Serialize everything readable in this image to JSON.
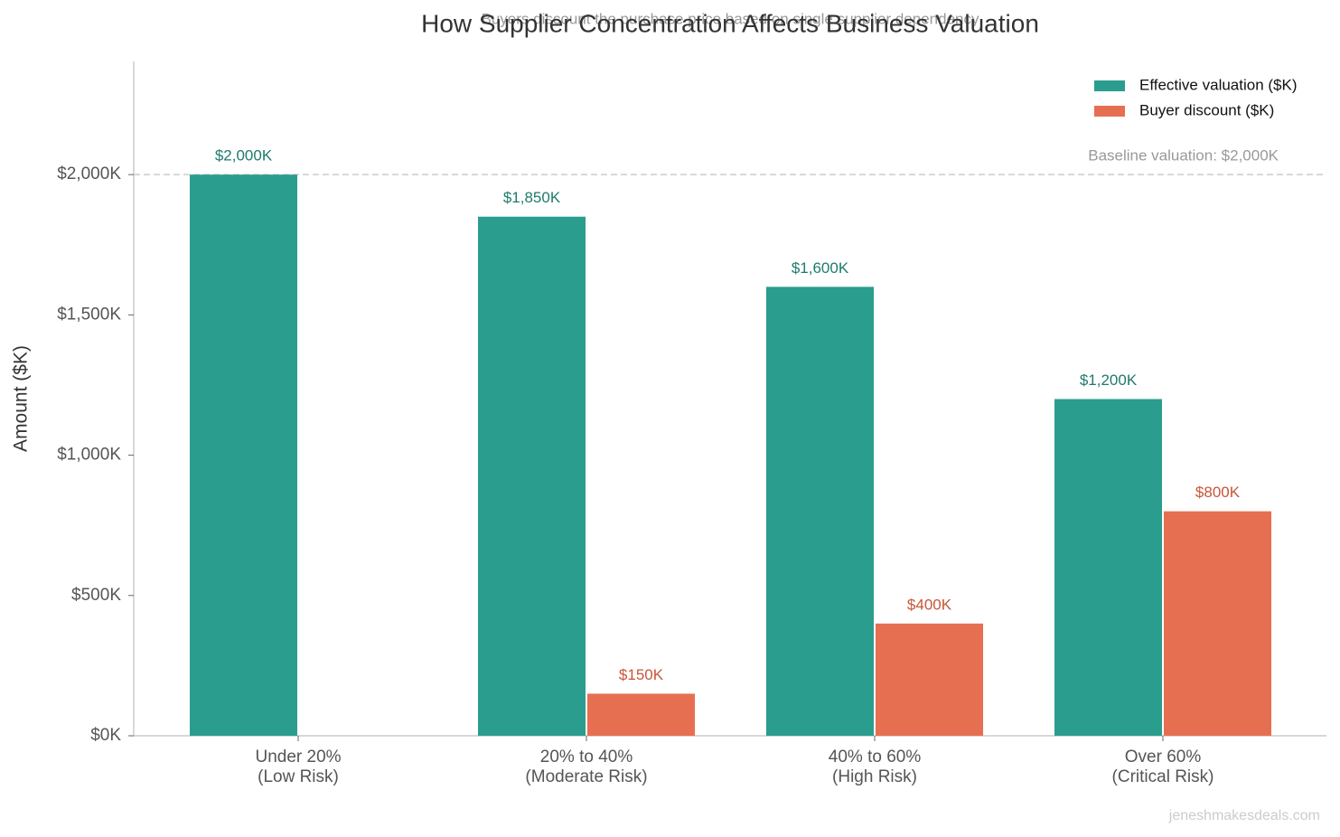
{
  "chart_data": {
    "type": "bar",
    "title": "How Supplier Concentration Affects Business Valuation",
    "subtitle": "Buyers discount the purchase price based on single supplier dependency",
    "y_label": "Amount ($K)",
    "categories": [
      "Under 20%\n(Low Risk)",
      "20% to 40%\n(Moderate Risk)",
      "40% to 60%\n(High Risk)",
      "Over 60%\n(Critical Risk)"
    ],
    "series": [
      {
        "name": "Effective valuation ($K)",
        "color": "#2a9d8f",
        "values": [
          2000,
          1850,
          1600,
          1200
        ],
        "value_labels": [
          "$2,000K",
          "$1,850K",
          "$1,600K",
          "$1,200K"
        ]
      },
      {
        "name": "Buyer discount ($K)",
        "color": "#e76f51",
        "values": [
          0,
          150,
          400,
          800
        ],
        "value_labels": [
          null,
          "$150K",
          "$400K",
          "$800K"
        ]
      }
    ],
    "ylim": [
      0,
      2400
    ],
    "yticks": [
      {
        "value": 0,
        "label": "$0K"
      },
      {
        "value": 500,
        "label": "$500K"
      },
      {
        "value": 1000,
        "label": "$1,000K"
      },
      {
        "value": 1500,
        "label": "$1,500K"
      },
      {
        "value": 2000,
        "label": "$2,000K"
      }
    ],
    "baseline": {
      "value": 2000,
      "label": "Baseline valuation: $2,000K"
    },
    "legend": "upper right",
    "watermark": "jeneshmakesdeals.com"
  }
}
